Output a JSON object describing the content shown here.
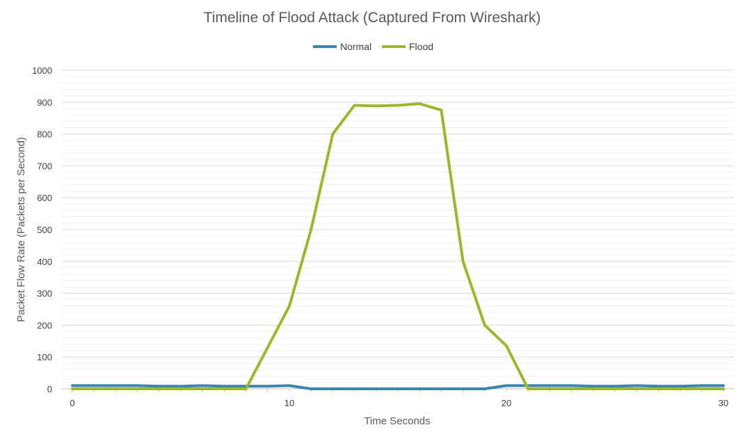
{
  "chart_data": {
    "type": "line",
    "title": "Timeline of Flood Attack (Captured From Wireshark)",
    "xlabel": "Time Seconds",
    "ylabel": "Packet Flow Rate (Packets per Second)",
    "xlim": [
      0,
      30
    ],
    "ylim": [
      0,
      1000
    ],
    "x_ticks": [
      0,
      10,
      20,
      30
    ],
    "y_ticks": [
      0,
      100,
      200,
      300,
      400,
      500,
      600,
      700,
      800,
      900,
      1000
    ],
    "grid": true,
    "legend_position": "top",
    "series": [
      {
        "name": "Normal",
        "color": "#3e85ae",
        "points": [
          [
            0,
            10
          ],
          [
            1,
            10
          ],
          [
            2,
            10
          ],
          [
            3,
            10
          ],
          [
            4,
            8
          ],
          [
            5,
            8
          ],
          [
            6,
            10
          ],
          [
            7,
            8
          ],
          [
            8,
            8
          ],
          [
            9,
            8
          ],
          [
            10,
            10
          ],
          [
            11,
            0
          ],
          [
            12,
            0
          ],
          [
            13,
            0
          ],
          [
            14,
            0
          ],
          [
            15,
            0
          ],
          [
            16,
            0
          ],
          [
            17,
            0
          ],
          [
            18,
            0
          ],
          [
            19,
            0
          ],
          [
            20,
            10
          ],
          [
            21,
            10
          ],
          [
            22,
            10
          ],
          [
            23,
            10
          ],
          [
            24,
            8
          ],
          [
            25,
            8
          ],
          [
            26,
            10
          ],
          [
            27,
            8
          ],
          [
            28,
            8
          ],
          [
            29,
            10
          ],
          [
            30,
            10
          ]
        ]
      },
      {
        "name": "Flood",
        "color": "#9bb827",
        "points": [
          [
            0,
            0
          ],
          [
            1,
            0
          ],
          [
            2,
            0
          ],
          [
            3,
            0
          ],
          [
            4,
            0
          ],
          [
            5,
            0
          ],
          [
            6,
            0
          ],
          [
            7,
            0
          ],
          [
            8,
            0
          ],
          [
            9,
            130
          ],
          [
            10,
            260
          ],
          [
            11,
            500
          ],
          [
            12,
            800
          ],
          [
            13,
            890
          ],
          [
            14,
            888
          ],
          [
            15,
            890
          ],
          [
            16,
            895
          ],
          [
            17,
            875
          ],
          [
            18,
            400
          ],
          [
            19,
            200
          ],
          [
            20,
            135
          ],
          [
            21,
            0
          ],
          [
            22,
            0
          ],
          [
            23,
            0
          ],
          [
            24,
            0
          ],
          [
            25,
            0
          ],
          [
            26,
            0
          ],
          [
            27,
            0
          ],
          [
            28,
            0
          ],
          [
            29,
            0
          ],
          [
            30,
            0
          ]
        ]
      }
    ]
  }
}
